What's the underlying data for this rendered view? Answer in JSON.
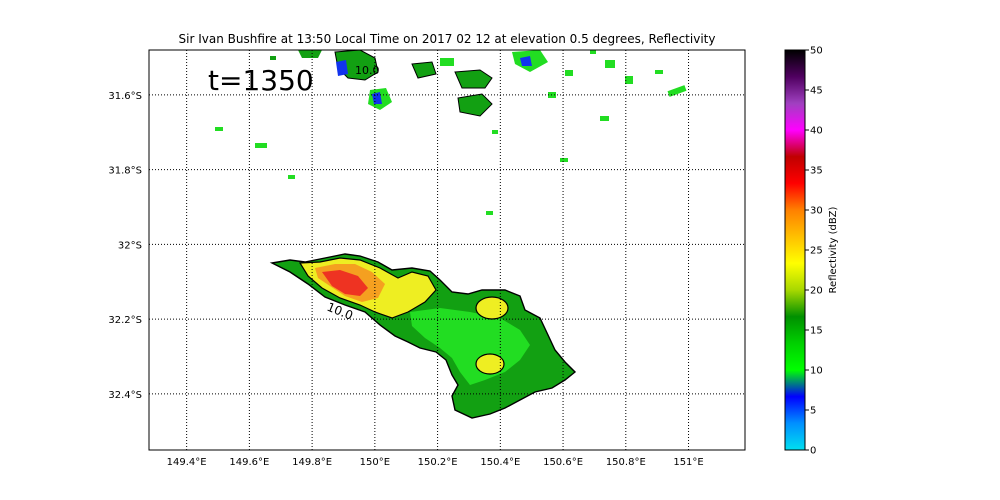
{
  "title": "Sir Ivan Bushfire at 13:50 Local Time on 2017 02 12 at elevation 0.5 degrees, Reflectivity",
  "annotation": "t=1350",
  "contour_label": "10.0",
  "map": {
    "lon_range": [
      149.28,
      151.18
    ],
    "lat_range": [
      -32.55,
      -31.48
    ],
    "lon_ticks": [
      {
        "value": 149.4,
        "label": "149.4°E"
      },
      {
        "value": 149.6,
        "label": "149.6°E"
      },
      {
        "value": 149.8,
        "label": "149.8°E"
      },
      {
        "value": 150.0,
        "label": "150°E"
      },
      {
        "value": 150.2,
        "label": "150.2°E"
      },
      {
        "value": 150.4,
        "label": "150.4°E"
      },
      {
        "value": 150.6,
        "label": "150.6°E"
      },
      {
        "value": 150.8,
        "label": "150.8°E"
      },
      {
        "value": 151.0,
        "label": "151°E"
      }
    ],
    "lat_ticks": [
      {
        "value": -31.6,
        "label": "31.6°S"
      },
      {
        "value": -31.8,
        "label": "31.8°S"
      },
      {
        "value": -32.0,
        "label": "32°S"
      },
      {
        "value": -32.2,
        "label": "32.2°S"
      },
      {
        "value": -32.4,
        "label": "32.4°S"
      }
    ],
    "grid": "dotted"
  },
  "colorbar": {
    "label": "Reflectivity (dBZ)",
    "range": [
      0,
      50
    ],
    "ticks": [
      "0",
      "5",
      "10",
      "15",
      "20",
      "25",
      "30",
      "35",
      "40",
      "45",
      "50"
    ],
    "colors": [
      "#00e0f0",
      "#0090ff",
      "#0000ff",
      "#00ff00",
      "#00d000",
      "#009000",
      "#a8d800",
      "#ffff00",
      "#ffc000",
      "#ff8000",
      "#ff0000",
      "#c00000",
      "#ff00ff",
      "#a040c0",
      "#500060",
      "#000000"
    ]
  },
  "colors": {
    "plume_green": "#12a012",
    "light_green": "#22dd22",
    "yellow": "#eeee22",
    "orange": "#f5a020",
    "red": "#ee3322",
    "blue": "#1133ee"
  }
}
